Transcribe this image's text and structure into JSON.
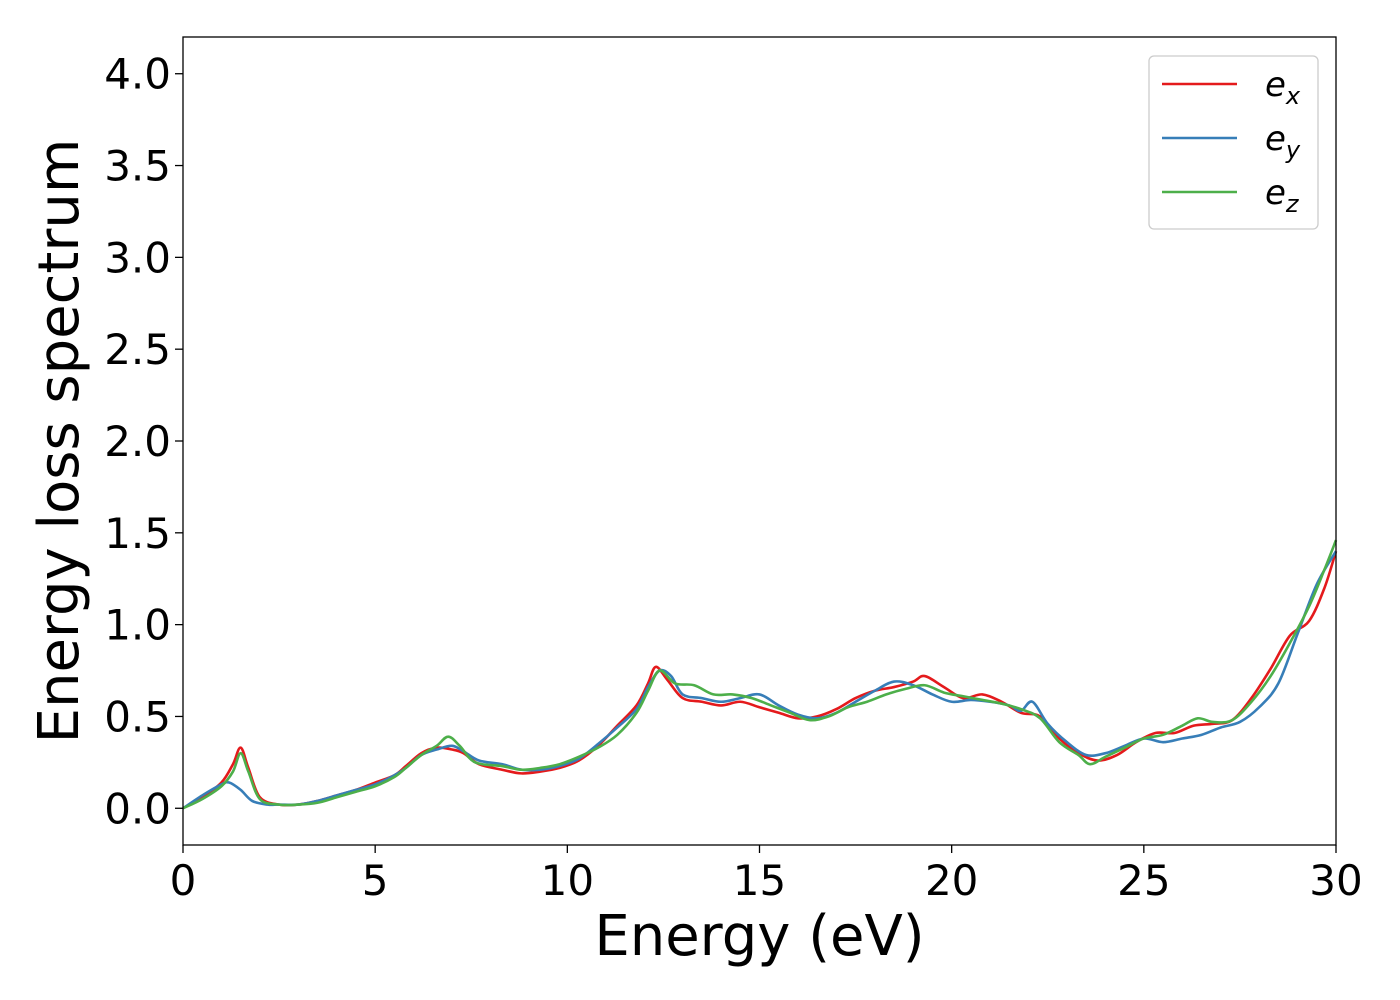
{
  "chart_data": {
    "type": "line",
    "title": "",
    "xlabel": "Energy (eV)",
    "ylabel": "Energy loss spectrum",
    "xlim": [
      0,
      30
    ],
    "ylim": [
      -0.2,
      4.2
    ],
    "xticks": [
      0,
      5,
      10,
      15,
      20,
      25,
      30
    ],
    "xtick_labels": [
      "0",
      "5",
      "10",
      "15",
      "20",
      "25",
      "30"
    ],
    "yticks": [
      0.0,
      0.5,
      1.0,
      1.5,
      2.0,
      2.5,
      3.0,
      3.5,
      4.0
    ],
    "ytick_labels": [
      "0.0",
      "0.5",
      "1.0",
      "1.5",
      "2.0",
      "2.5",
      "3.0",
      "3.5",
      "4.0"
    ],
    "grid": false,
    "legend_position": "top-right",
    "series": [
      {
        "name": "e_x",
        "label_base": "e",
        "label_sub": "x",
        "color": "#e41a1c",
        "x": [
          0,
          0.5,
          1.0,
          1.3,
          1.5,
          1.7,
          2.0,
          2.5,
          3.0,
          3.5,
          4.0,
          4.5,
          5.0,
          5.5,
          5.8,
          6.2,
          6.6,
          7.0,
          7.3,
          7.7,
          8.3,
          8.8,
          9.3,
          9.8,
          10.3,
          10.8,
          11.3,
          11.8,
          12.1,
          12.3,
          12.6,
          13.0,
          13.5,
          14.0,
          14.5,
          15.0,
          15.5,
          16.0,
          16.5,
          17.0,
          17.5,
          18.0,
          18.5,
          19.0,
          19.3,
          19.8,
          20.3,
          20.8,
          21.3,
          21.8,
          22.3,
          22.8,
          23.3,
          23.8,
          24.3,
          24.8,
          25.3,
          25.8,
          26.3,
          26.8,
          27.3,
          27.8,
          28.3,
          28.8,
          29.3,
          29.7,
          30.0
        ],
        "y": [
          0.0,
          0.06,
          0.14,
          0.24,
          0.33,
          0.22,
          0.06,
          0.02,
          0.02,
          0.04,
          0.07,
          0.1,
          0.14,
          0.18,
          0.23,
          0.3,
          0.33,
          0.32,
          0.3,
          0.24,
          0.21,
          0.19,
          0.2,
          0.22,
          0.26,
          0.34,
          0.45,
          0.56,
          0.68,
          0.77,
          0.7,
          0.6,
          0.58,
          0.56,
          0.58,
          0.55,
          0.52,
          0.49,
          0.5,
          0.54,
          0.6,
          0.64,
          0.66,
          0.69,
          0.72,
          0.66,
          0.6,
          0.62,
          0.58,
          0.52,
          0.5,
          0.38,
          0.3,
          0.26,
          0.29,
          0.36,
          0.41,
          0.41,
          0.45,
          0.46,
          0.48,
          0.6,
          0.76,
          0.94,
          1.02,
          1.2,
          1.4
        ]
      },
      {
        "name": "e_y",
        "label_base": "e",
        "label_sub": "y",
        "color": "#377eb8",
        "x": [
          0,
          0.5,
          1.0,
          1.2,
          1.5,
          1.8,
          2.2,
          2.5,
          3.0,
          3.5,
          4.0,
          4.5,
          5.0,
          5.5,
          5.8,
          6.2,
          6.6,
          7.0,
          7.3,
          7.7,
          8.3,
          8.8,
          9.3,
          9.8,
          10.3,
          10.8,
          11.3,
          11.8,
          12.1,
          12.4,
          12.7,
          13.0,
          13.5,
          14.0,
          14.5,
          15.0,
          15.5,
          16.0,
          16.5,
          17.0,
          17.5,
          18.0,
          18.5,
          19.0,
          19.5,
          20.0,
          20.5,
          21.0,
          21.5,
          21.8,
          22.1,
          22.5,
          23.0,
          23.5,
          24.0,
          24.5,
          25.0,
          25.5,
          26.0,
          26.5,
          27.0,
          27.5,
          28.0,
          28.5,
          29.0,
          29.5,
          30.0
        ],
        "y": [
          0.0,
          0.07,
          0.13,
          0.14,
          0.1,
          0.04,
          0.02,
          0.02,
          0.02,
          0.04,
          0.07,
          0.1,
          0.13,
          0.18,
          0.22,
          0.29,
          0.32,
          0.34,
          0.31,
          0.26,
          0.24,
          0.21,
          0.21,
          0.23,
          0.27,
          0.35,
          0.44,
          0.54,
          0.66,
          0.75,
          0.72,
          0.62,
          0.6,
          0.58,
          0.6,
          0.62,
          0.56,
          0.51,
          0.49,
          0.52,
          0.58,
          0.64,
          0.69,
          0.67,
          0.62,
          0.58,
          0.59,
          0.58,
          0.56,
          0.53,
          0.58,
          0.46,
          0.36,
          0.29,
          0.3,
          0.34,
          0.38,
          0.36,
          0.38,
          0.4,
          0.44,
          0.47,
          0.55,
          0.68,
          0.95,
          1.22,
          1.4
        ]
      },
      {
        "name": "e_z",
        "label_base": "e",
        "label_sub": "z",
        "color": "#4daf4a",
        "x": [
          0,
          0.5,
          1.0,
          1.3,
          1.5,
          1.7,
          2.0,
          2.5,
          3.0,
          3.5,
          4.0,
          4.5,
          5.0,
          5.5,
          5.8,
          6.2,
          6.6,
          6.9,
          7.2,
          7.6,
          8.3,
          8.8,
          9.3,
          9.8,
          10.3,
          10.8,
          11.3,
          11.8,
          12.1,
          12.4,
          12.8,
          13.3,
          13.8,
          14.3,
          14.8,
          15.3,
          15.8,
          16.3,
          16.8,
          17.3,
          17.8,
          18.3,
          18.8,
          19.3,
          19.8,
          20.3,
          20.8,
          21.3,
          21.8,
          22.3,
          22.8,
          23.3,
          23.6,
          24.0,
          24.5,
          25.0,
          25.5,
          26.0,
          26.4,
          26.8,
          27.3,
          27.8,
          28.3,
          28.8,
          29.3,
          29.7,
          30.0
        ],
        "y": [
          0.0,
          0.05,
          0.12,
          0.2,
          0.3,
          0.2,
          0.05,
          0.02,
          0.02,
          0.03,
          0.06,
          0.09,
          0.12,
          0.17,
          0.22,
          0.29,
          0.34,
          0.39,
          0.34,
          0.25,
          0.23,
          0.21,
          0.22,
          0.24,
          0.28,
          0.33,
          0.4,
          0.52,
          0.64,
          0.75,
          0.68,
          0.67,
          0.62,
          0.62,
          0.6,
          0.56,
          0.52,
          0.48,
          0.5,
          0.55,
          0.58,
          0.62,
          0.65,
          0.67,
          0.63,
          0.61,
          0.59,
          0.57,
          0.54,
          0.49,
          0.36,
          0.29,
          0.24,
          0.28,
          0.33,
          0.38,
          0.4,
          0.45,
          0.49,
          0.47,
          0.48,
          0.58,
          0.72,
          0.9,
          1.1,
          1.3,
          1.46
        ]
      }
    ]
  }
}
